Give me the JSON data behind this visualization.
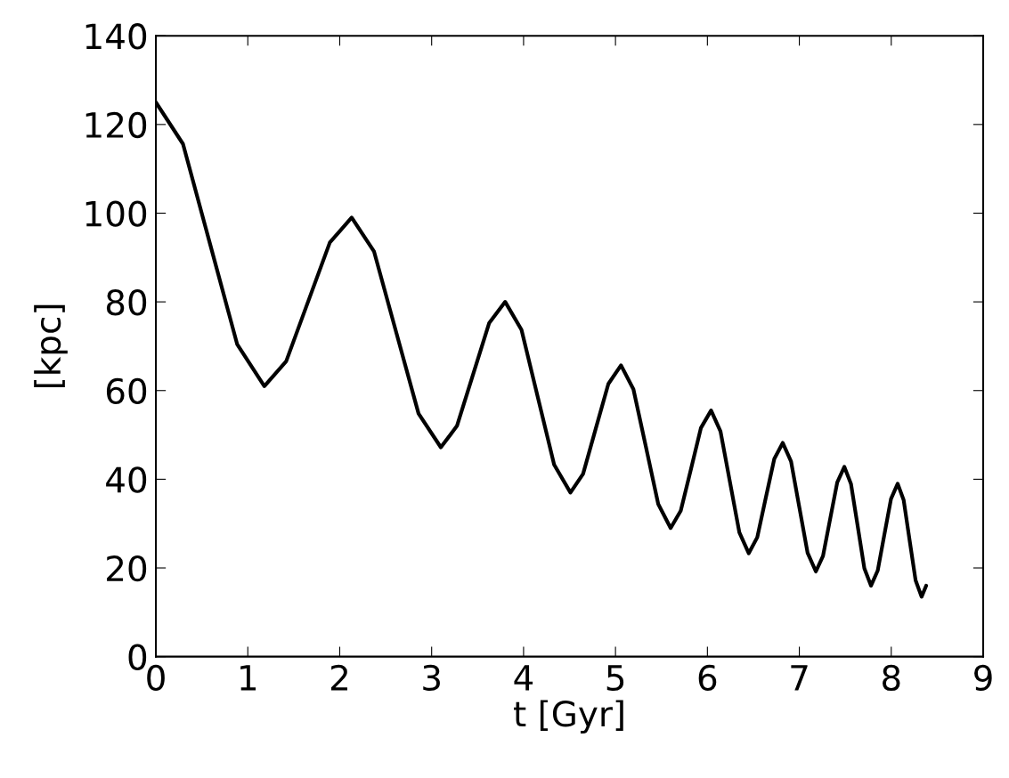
{
  "chart_data": {
    "type": "line",
    "xlabel": "t [Gyr]",
    "ylabel": "[kpc]",
    "series": [
      {
        "color": "#000000",
        "x": [
          0,
          0.295,
          0.59,
          0.885,
          1.18,
          1.4175,
          1.655,
          1.8925,
          2.13,
          2.3725,
          2.615,
          2.8575,
          3.1,
          3.275,
          3.45,
          3.625,
          3.8,
          3.9775,
          4.155,
          4.3325,
          4.51,
          4.6475,
          4.785,
          4.9225,
          5.06,
          5.195,
          5.33,
          5.465,
          5.6,
          5.71,
          5.82,
          5.93,
          6.04,
          6.1425,
          6.245,
          6.3475,
          6.45,
          6.5425,
          6.635,
          6.7275,
          6.82,
          6.91,
          7.0,
          7.09,
          7.18,
          7.2575,
          7.335,
          7.4125,
          7.49,
          7.5625,
          7.635,
          7.7075,
          7.78,
          7.8525,
          7.925,
          7.9975,
          8.07,
          8.135,
          8.2,
          8.265,
          8.33,
          8.38
        ],
        "values": [
          125,
          115.6,
          93,
          70.4,
          61,
          66.6,
          80,
          93.4,
          99,
          91.4,
          73.1,
          54.8,
          47.2,
          52.0,
          63.6,
          75.2,
          80,
          73.7,
          58.5,
          43.3,
          37,
          41.2,
          51.4,
          61.5,
          65.7,
          60.3,
          47.4,
          34.4,
          29,
          32.9,
          42.2,
          51.6,
          55.5,
          50.8,
          39.4,
          28.0,
          23.3,
          26.9,
          35.8,
          44.6,
          48.2,
          44.0,
          33.7,
          23.4,
          19.2,
          22.7,
          31.0,
          39.3,
          42.8,
          38.9,
          29.4,
          19.9,
          16,
          19.4,
          27.5,
          35.6,
          39,
          35.3,
          26.2,
          17.2,
          13.5,
          16
        ]
      }
    ],
    "xlim": [
      0,
      9
    ],
    "xticks": [
      0,
      1,
      2,
      3,
      4,
      5,
      6,
      7,
      8,
      9
    ],
    "ylim": [
      0,
      140
    ],
    "yticks": [
      0,
      20,
      40,
      60,
      80,
      100,
      120,
      140
    ],
    "grid": false,
    "marker": "none",
    "line_style": "solid"
  }
}
